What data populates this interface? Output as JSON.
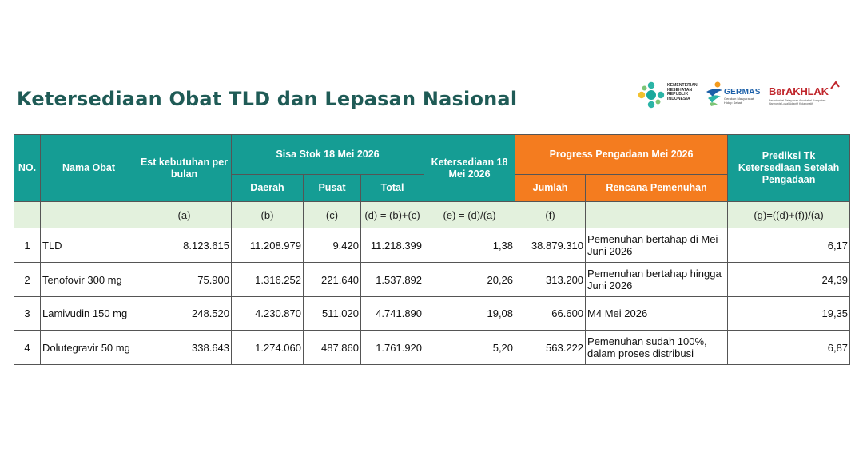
{
  "title": "Ketersediaan Obat TLD dan Lepasan Nasional",
  "logos": {
    "kemenkes_lines": [
      "KEMENTERIAN",
      "KESEHATAN",
      "REPUBLIK",
      "INDONESIA"
    ],
    "germas_word": "GERMAS",
    "germas_sub": "Gerakan Masyarakat Hidup Sehat",
    "berakhlak_word": "BerAKHLAK",
    "berakhlak_sub": "Berorientasi Pelayanan Akuntabel Kompeten Harmonis Loyal Adaptif Kolaboratif"
  },
  "table": {
    "headers": {
      "no": "NO.",
      "nama": "Nama Obat",
      "est": "Est kebutuhan per bulan",
      "sisa_stok": "Sisa Stok 18 Mei 2026",
      "daerah": "Daerah",
      "pusat": "Pusat",
      "total": "Total",
      "ketersediaan": "Ketersediaan 18 Mei 2026",
      "progress": "Progress Pengadaan Mei 2026",
      "jumlah": "Jumlah",
      "rencana": "Rencana Pemenuhan",
      "prediksi": "Prediksi Tk Ketersediaan Setelah Pengadaan"
    },
    "letters": {
      "est": "(a)",
      "daerah": "(b)",
      "pusat": "(c)",
      "total": "(d) = (b)+(c)",
      "ketersediaan": "(e) = (d)/(a)",
      "jumlah": "(f)",
      "prediksi": "(g)=((d)+(f))/(a)"
    },
    "rows": [
      {
        "no": "1",
        "nama": "TLD",
        "est": "8.123.615",
        "daerah": "11.208.979",
        "pusat": "9.420",
        "total": "11.218.399",
        "ketersediaan": "1,38",
        "jumlah": "38.879.310",
        "rencana": "Pemenuhan bertahap di Mei-Juni 2026",
        "prediksi": "6,17"
      },
      {
        "no": "2",
        "nama": "Tenofovir 300 mg",
        "est": "75.900",
        "daerah": "1.316.252",
        "pusat": "221.640",
        "total": "1.537.892",
        "ketersediaan": "20,26",
        "jumlah": "313.200",
        "rencana": "Pemenuhan bertahap hingga Juni 2026",
        "prediksi": "24,39"
      },
      {
        "no": "3",
        "nama": "Lamivudin 150 mg",
        "est": "248.520",
        "daerah": "4.230.870",
        "pusat": "511.020",
        "total": "4.741.890",
        "ketersediaan": "19,08",
        "jumlah": "66.600",
        "rencana": "M4 Mei 2026",
        "prediksi": "19,35"
      },
      {
        "no": "4",
        "nama": "Dolutegravir 50 mg",
        "est": "338.643",
        "daerah": "1.274.060",
        "pusat": "487.860",
        "total": "1.761.920",
        "ketersediaan": "5,20",
        "jumlah": "563.222",
        "rencana": "Pemenuhan sudah 100%, dalam proses distribusi",
        "prediksi": "6,87"
      }
    ]
  },
  "colors": {
    "title": "#1f5b56",
    "header_teal": "#159d94",
    "header_orange": "#f47c1f",
    "letter_row": "#e3f1dd"
  }
}
